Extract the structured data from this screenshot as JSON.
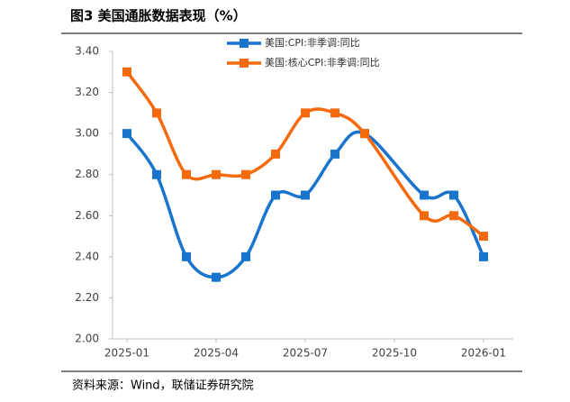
{
  "chart_data": {
    "type": "line",
    "title": "图3  美国通胀数据表现（%）",
    "source": "资料来源：Wind，联储证券研究院",
    "x": [
      "2025-01",
      "2025-02",
      "2025-03",
      "2025-04",
      "2025-05",
      "2025-06",
      "2025-07",
      "2025-08",
      "2025-09",
      "2025-11",
      "2025-12",
      "2026-01"
    ],
    "xticks": [
      "2025-01",
      "2025-04",
      "2025-07",
      "2025-10",
      "2026-01"
    ],
    "series": [
      {
        "name": "美国:CPI:非季调:同比",
        "color": "#1874cd",
        "values": [
          3.0,
          2.8,
          2.4,
          2.3,
          2.4,
          2.7,
          2.7,
          2.9,
          3.0,
          2.7,
          2.7,
          2.4
        ]
      },
      {
        "name": "美国:核心CPI:非季调:同比",
        "color": "#f56a0c",
        "values": [
          3.3,
          3.1,
          2.8,
          2.8,
          2.8,
          2.9,
          3.1,
          3.1,
          3.0,
          2.6,
          2.6,
          2.5
        ]
      }
    ],
    "ylim": [
      2.0,
      3.4
    ],
    "yticks": [
      {
        "value": 2.0,
        "label": "2.00"
      },
      {
        "value": 2.2,
        "label": "2.20"
      },
      {
        "value": 2.4,
        "label": "2.40"
      },
      {
        "value": 2.6,
        "label": "2.60"
      },
      {
        "value": 2.8,
        "label": "2.80"
      },
      {
        "value": 3.0,
        "label": "3.00"
      },
      {
        "value": 3.2,
        "label": "3.20"
      },
      {
        "value": 3.4,
        "label": "3.40"
      }
    ],
    "grid": false
  }
}
